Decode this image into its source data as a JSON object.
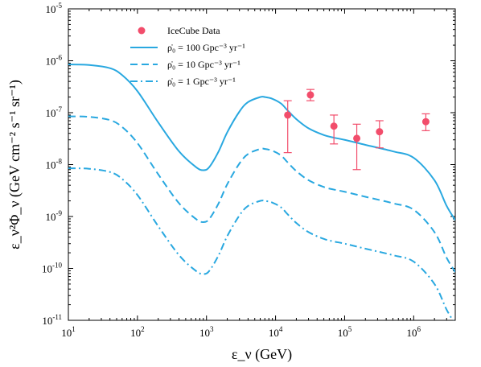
{
  "chart_data": {
    "type": "line",
    "xlabel": "ε_ν (GeV)",
    "ylabel": "ε_ν²Φ_ν (GeV cm⁻² s⁻¹ sr⁻¹)",
    "xscale": "log",
    "yscale": "log",
    "xlim": [
      10,
      4000000
    ],
    "ylim": [
      1e-11,
      1e-05
    ],
    "x_ticks": [
      {
        "value": 10,
        "base": "10",
        "exp": "1"
      },
      {
        "value": 100,
        "base": "10",
        "exp": "2"
      },
      {
        "value": 1000,
        "base": "10",
        "exp": "3"
      },
      {
        "value": 10000,
        "base": "10",
        "exp": "4"
      },
      {
        "value": 100000,
        "base": "10",
        "exp": "5"
      },
      {
        "value": 1000000,
        "base": "10",
        "exp": "6"
      }
    ],
    "y_ticks": [
      {
        "value": 1e-11,
        "base": "10",
        "exp": "-11"
      },
      {
        "value": 1e-10,
        "base": "10",
        "exp": "-10"
      },
      {
        "value": 1e-09,
        "base": "10",
        "exp": "-9"
      },
      {
        "value": 1e-08,
        "base": "10",
        "exp": "-8"
      },
      {
        "value": 1e-07,
        "base": "10",
        "exp": "-7"
      },
      {
        "value": 1e-06,
        "base": "10",
        "exp": "-6"
      },
      {
        "value": 1e-05,
        "base": "10",
        "exp": "-5"
      }
    ],
    "legend_position": "top-left",
    "grid": false,
    "colors": {
      "model": "#29a8e0",
      "data": "#f24d6b"
    },
    "series": [
      {
        "name": "ρ̇₀ = 100 Gpc⁻³ yr⁻¹",
        "style": "solid",
        "x": [
          10,
          20,
          40,
          60,
          100,
          200,
          400,
          700,
          900,
          1100,
          1500,
          2000,
          3000,
          4000,
          6000,
          7000,
          9000,
          12000,
          15000,
          20000,
          30000,
          50000,
          70000,
          100000,
          200000,
          500000,
          1000000,
          2000000,
          3000000,
          4000000
        ],
        "y": [
          8.5e-07,
          8.3e-07,
          7.2e-07,
          5.3e-07,
          2.6e-07,
          6.5e-08,
          1.8e-08,
          9e-09,
          7.8e-09,
          9e-09,
          1.8e-08,
          4.2e-08,
          1.05e-07,
          1.6e-07,
          2e-07,
          2e-07,
          1.85e-07,
          1.5e-07,
          1.1e-07,
          7.5e-08,
          5e-08,
          3.7e-08,
          3.3e-08,
          3e-08,
          2.4e-08,
          1.8e-08,
          1.35e-08,
          5e-09,
          1.6e-09,
          8.5e-10
        ]
      },
      {
        "name": "ρ̇₀ = 10 Gpc⁻³ yr⁻¹",
        "style": "dashed",
        "x": [
          10,
          20,
          40,
          60,
          100,
          200,
          400,
          700,
          900,
          1100,
          1500,
          2000,
          3000,
          4000,
          6000,
          7000,
          9000,
          12000,
          15000,
          20000,
          30000,
          50000,
          70000,
          100000,
          200000,
          500000,
          1000000,
          2000000,
          3000000,
          4000000
        ],
        "y": [
          8.5e-08,
          8.3e-08,
          7.2e-08,
          5.3e-08,
          2.6e-08,
          6.5e-09,
          1.8e-09,
          9e-10,
          7.8e-10,
          9e-10,
          1.8e-09,
          4.2e-09,
          1.05e-08,
          1.6e-08,
          2e-08,
          2e-08,
          1.85e-08,
          1.5e-08,
          1.1e-08,
          7.5e-09,
          5e-09,
          3.7e-09,
          3.3e-09,
          3e-09,
          2.4e-09,
          1.8e-09,
          1.35e-09,
          5e-10,
          1.6e-10,
          8.5e-11
        ]
      },
      {
        "name": "ρ̇₀ = 1 Gpc⁻³ yr⁻¹",
        "style": "dashdot",
        "x": [
          10,
          20,
          40,
          60,
          100,
          200,
          400,
          700,
          900,
          1100,
          1500,
          2000,
          3000,
          4000,
          6000,
          7000,
          9000,
          12000,
          15000,
          20000,
          30000,
          50000,
          70000,
          100000,
          200000,
          500000,
          1000000,
          2000000,
          3000000,
          4000000
        ],
        "y": [
          8.5e-09,
          8.3e-09,
          7.2e-09,
          5.3e-09,
          2.6e-09,
          6.5e-10,
          1.8e-10,
          9e-11,
          7.8e-11,
          9e-11,
          1.8e-10,
          4.2e-10,
          1.05e-09,
          1.6e-09,
          2e-09,
          2e-09,
          1.85e-09,
          1.5e-09,
          1.1e-09,
          7.5e-10,
          5e-10,
          3.7e-10,
          3.3e-10,
          3e-10,
          2.4e-10,
          1.8e-10,
          1.35e-10,
          5e-11,
          1.6e-11,
          8.5e-12
        ]
      }
    ],
    "points": {
      "name": "IceCube Data",
      "x": [
        15000,
        32000,
        70000,
        150000,
        320000,
        1500000
      ],
      "y": [
        9e-08,
        2.2e-07,
        5.5e-08,
        3.2e-08,
        4.3e-08,
        6.7e-08
      ],
      "y_low": [
        1.7e-08,
        1.7e-07,
        2.5e-08,
        8e-09,
        2.1e-08,
        4.5e-08
      ],
      "y_high": [
        1.7e-07,
        2.8e-07,
        9e-08,
        6e-08,
        7e-08,
        9.5e-08
      ]
    }
  }
}
